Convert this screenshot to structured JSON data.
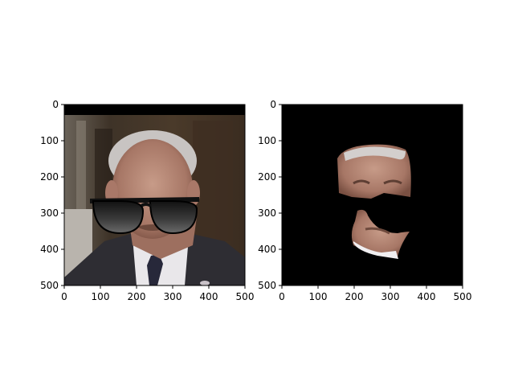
{
  "figure": {
    "panels": [
      {
        "name": "left-panel",
        "image_desc": "photo",
        "x_ticks": [
          "0",
          "100",
          "200",
          "300",
          "400",
          "500"
        ],
        "y_ticks": [
          "0",
          "100",
          "200",
          "300",
          "400",
          "500"
        ]
      },
      {
        "name": "right-panel",
        "image_desc": "mask",
        "x_ticks": [
          "0",
          "100",
          "200",
          "300",
          "400",
          "500"
        ],
        "y_ticks": [
          "0",
          "100",
          "200",
          "300",
          "400",
          "500"
        ]
      }
    ]
  },
  "colors": {
    "black": "#000000",
    "tie": "#27283a",
    "suit": "#2e2d33"
  },
  "icons": [
    "sunglasses-icon",
    "face-photo-icon"
  ]
}
